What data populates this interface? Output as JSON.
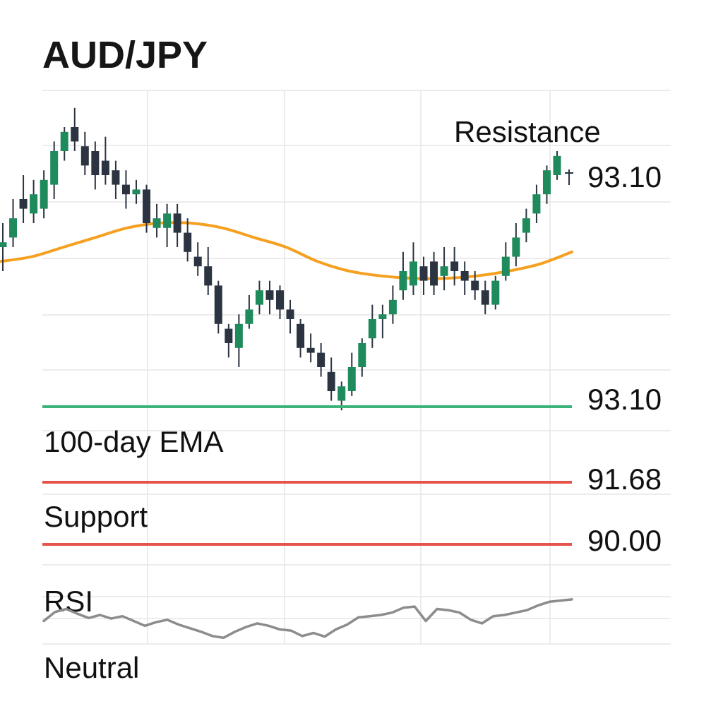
{
  "title": "AUD/JPY",
  "colors": {
    "bull": "#1f8a5b",
    "bear": "#2b3440",
    "ema": "#f5a020",
    "support_line": "#e5544a",
    "level_green": "#3bb37a",
    "grid": "#e6e6e6",
    "rsi": "#8c8c8c"
  },
  "labels": {
    "resistance": "Resistance",
    "resistance_value": "93.10",
    "green_value": "93.10",
    "ema_label": "100-day EMA",
    "ema_value": "91.68",
    "support_label": "Support",
    "support_value": "90.00",
    "rsi_label": "RSI",
    "rsi_state": "Neutral"
  },
  "chart_data": [
    {
      "type": "candlestick",
      "title": "AUD/JPY",
      "indicators": [
        "100-day EMA"
      ],
      "candles": [
        {
          "o": 0.5,
          "c": 0.52,
          "h": 0.6,
          "l": 0.4
        },
        {
          "o": 0.54,
          "c": 0.62,
          "h": 0.7,
          "l": 0.5
        },
        {
          "o": 0.7,
          "c": 0.66,
          "h": 0.8,
          "l": 0.6
        },
        {
          "o": 0.64,
          "c": 0.72,
          "h": 0.78,
          "l": 0.6
        },
        {
          "o": 0.66,
          "c": 0.78,
          "h": 0.82,
          "l": 0.62
        },
        {
          "o": 0.76,
          "c": 0.9,
          "h": 0.94,
          "l": 0.7
        },
        {
          "o": 0.9,
          "c": 0.98,
          "h": 1.0,
          "l": 0.86
        },
        {
          "o": 1.0,
          "c": 0.94,
          "h": 1.08,
          "l": 0.9
        },
        {
          "o": 0.92,
          "c": 0.84,
          "h": 0.98,
          "l": 0.8
        },
        {
          "o": 0.9,
          "c": 0.8,
          "h": 0.94,
          "l": 0.74
        },
        {
          "o": 0.86,
          "c": 0.8,
          "h": 0.96,
          "l": 0.76
        },
        {
          "o": 0.82,
          "c": 0.76,
          "h": 0.86,
          "l": 0.7
        },
        {
          "o": 0.76,
          "c": 0.72,
          "h": 0.82,
          "l": 0.66
        },
        {
          "o": 0.72,
          "c": 0.74,
          "h": 0.78,
          "l": 0.68
        },
        {
          "o": 0.74,
          "c": 0.6,
          "h": 0.76,
          "l": 0.56
        },
        {
          "o": 0.58,
          "c": 0.62,
          "h": 0.68,
          "l": 0.54
        },
        {
          "o": 0.58,
          "c": 0.64,
          "h": 0.68,
          "l": 0.5
        },
        {
          "o": 0.64,
          "c": 0.56,
          "h": 0.68,
          "l": 0.5
        },
        {
          "o": 0.56,
          "c": 0.48,
          "h": 0.62,
          "l": 0.44
        },
        {
          "o": 0.46,
          "c": 0.42,
          "h": 0.52,
          "l": 0.38
        },
        {
          "o": 0.42,
          "c": 0.34,
          "h": 0.5,
          "l": 0.3
        },
        {
          "o": 0.34,
          "c": 0.18,
          "h": 0.36,
          "l": 0.14
        },
        {
          "o": 0.16,
          "c": 0.1,
          "h": 0.18,
          "l": 0.04
        },
        {
          "o": 0.08,
          "c": 0.18,
          "h": 0.22,
          "l": 0.0
        },
        {
          "o": 0.18,
          "c": 0.24,
          "h": 0.3,
          "l": 0.16
        },
        {
          "o": 0.26,
          "c": 0.32,
          "h": 0.36,
          "l": 0.22
        },
        {
          "o": 0.32,
          "c": 0.28,
          "h": 0.36,
          "l": 0.22
        },
        {
          "o": 0.32,
          "c": 0.24,
          "h": 0.34,
          "l": 0.2
        },
        {
          "o": 0.24,
          "c": 0.2,
          "h": 0.28,
          "l": 0.14
        },
        {
          "o": 0.18,
          "c": 0.08,
          "h": 0.2,
          "l": 0.04
        },
        {
          "o": 0.08,
          "c": 0.06,
          "h": 0.14,
          "l": 0.02
        },
        {
          "o": 0.06,
          "c": 0.0,
          "h": 0.1,
          "l": -0.04
        },
        {
          "o": -0.02,
          "c": -0.1,
          "h": 0.04,
          "l": -0.14
        },
        {
          "o": -0.14,
          "c": -0.08,
          "h": -0.06,
          "l": -0.18
        },
        {
          "o": -0.1,
          "c": 0.0,
          "h": 0.06,
          "l": -0.12
        },
        {
          "o": 0.0,
          "c": 0.1,
          "h": 0.12,
          "l": -0.04
        },
        {
          "o": 0.12,
          "c": 0.2,
          "h": 0.26,
          "l": 0.08
        },
        {
          "o": 0.2,
          "c": 0.22,
          "h": 0.26,
          "l": 0.12
        },
        {
          "o": 0.22,
          "c": 0.28,
          "h": 0.34,
          "l": 0.18
        },
        {
          "o": 0.32,
          "c": 0.4,
          "h": 0.48,
          "l": 0.28
        },
        {
          "o": 0.34,
          "c": 0.44,
          "h": 0.52,
          "l": 0.3
        },
        {
          "o": 0.42,
          "c": 0.36,
          "h": 0.46,
          "l": 0.3
        },
        {
          "o": 0.44,
          "c": 0.34,
          "h": 0.48,
          "l": 0.3
        },
        {
          "o": 0.38,
          "c": 0.42,
          "h": 0.5,
          "l": 0.32
        },
        {
          "o": 0.44,
          "c": 0.4,
          "h": 0.5,
          "l": 0.34
        },
        {
          "o": 0.4,
          "c": 0.36,
          "h": 0.44,
          "l": 0.3
        },
        {
          "o": 0.36,
          "c": 0.32,
          "h": 0.4,
          "l": 0.28
        },
        {
          "o": 0.32,
          "c": 0.26,
          "h": 0.36,
          "l": 0.22
        },
        {
          "o": 0.26,
          "c": 0.36,
          "h": 0.38,
          "l": 0.24
        },
        {
          "o": 0.38,
          "c": 0.46,
          "h": 0.52,
          "l": 0.36
        },
        {
          "o": 0.46,
          "c": 0.54,
          "h": 0.6,
          "l": 0.42
        },
        {
          "o": 0.56,
          "c": 0.62,
          "h": 0.66,
          "l": 0.52
        },
        {
          "o": 0.64,
          "c": 0.72,
          "h": 0.76,
          "l": 0.6
        },
        {
          "o": 0.72,
          "c": 0.82,
          "h": 0.84,
          "l": 0.68
        },
        {
          "o": 0.8,
          "c": 0.88,
          "h": 0.9,
          "l": 0.78
        }
      ],
      "ema": [
        0.44,
        0.46,
        0.5,
        0.54,
        0.58,
        0.6,
        0.6,
        0.58,
        0.54,
        0.5,
        0.44,
        0.4,
        0.38,
        0.37,
        0.37,
        0.38,
        0.4,
        0.43,
        0.48
      ],
      "levels": [
        {
          "name": "Resistance",
          "value": 93.1
        },
        {
          "value": 93.1
        },
        {
          "name": "100-day EMA",
          "value": 91.68
        },
        {
          "name": "Support",
          "value": 90.0
        }
      ]
    },
    {
      "type": "line",
      "title": "RSI",
      "annotation": "Neutral",
      "values": [
        0.3,
        0.45,
        0.5,
        0.42,
        0.35,
        0.4,
        0.34,
        0.38,
        0.3,
        0.22,
        0.28,
        0.32,
        0.24,
        0.18,
        0.12,
        0.05,
        0.02,
        0.12,
        0.2,
        0.26,
        0.22,
        0.16,
        0.14,
        0.05,
        0.1,
        0.04,
        0.16,
        0.24,
        0.36,
        0.38,
        0.4,
        0.44,
        0.52,
        0.54,
        0.3,
        0.5,
        0.48,
        0.44,
        0.32,
        0.26,
        0.38,
        0.4,
        0.44,
        0.48,
        0.56,
        0.62,
        0.64,
        0.66
      ]
    }
  ]
}
